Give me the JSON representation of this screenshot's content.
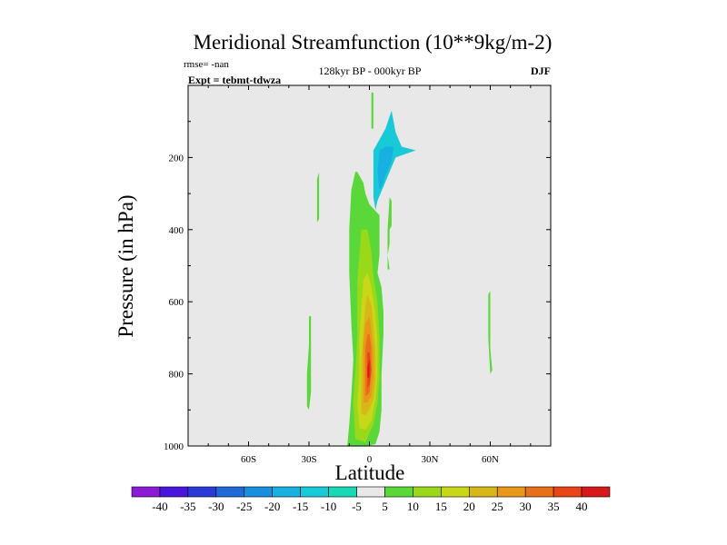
{
  "chart_data": {
    "type": "contour",
    "title": "Meridional Streamfunction (10**9kg/m-2)",
    "rmse_label": "rmse= -nan",
    "expt_label": "Expt = tebmt-tdwza",
    "subtitle": "128kyr BP - 000kyr BP",
    "season": "DJF",
    "xlabel": "Latitude",
    "ylabel": "Pressure (in hPa)",
    "xlim": [
      -90,
      90
    ],
    "ylim": [
      1000,
      0
    ],
    "xticks": [
      {
        "value": -60,
        "label": "60S"
      },
      {
        "value": -30,
        "label": "30S"
      },
      {
        "value": 0,
        "label": "0"
      },
      {
        "value": 30,
        "label": "30N"
      },
      {
        "value": 60,
        "label": "60N"
      }
    ],
    "yticks": [
      {
        "value": 200,
        "label": "200"
      },
      {
        "value": 400,
        "label": "400"
      },
      {
        "value": 600,
        "label": "600"
      },
      {
        "value": 800,
        "label": "800"
      },
      {
        "value": 1000,
        "label": "1000"
      }
    ],
    "background_color": "#e8e8e8",
    "colorbar": {
      "labels": [
        "-40",
        "-35",
        "-30",
        "-25",
        "-20",
        "-15",
        "-10",
        "-5",
        "5",
        "10",
        "15",
        "20",
        "25",
        "30",
        "35",
        "40"
      ],
      "colors": [
        "#8a1ad6",
        "#4a14dc",
        "#2a3ad8",
        "#1e6ad8",
        "#1890e0",
        "#18b0e0",
        "#18cad8",
        "#1ad8b4",
        "#e8e8e8",
        "#5ad83a",
        "#9ad81a",
        "#c8d818",
        "#d8b818",
        "#e89818",
        "#e87018",
        "#e84418",
        "#d81818"
      ]
    },
    "regions": [
      {
        "name": "equatorial-positive-cell",
        "fill": "#5ad83a",
        "points": [
          [
            -11,
            1000
          ],
          [
            -10,
            940
          ],
          [
            -9,
            860
          ],
          [
            -8,
            760
          ],
          [
            -9,
            660
          ],
          [
            -10,
            520
          ],
          [
            -10,
            400
          ],
          [
            -9,
            290
          ],
          [
            -7,
            240
          ],
          [
            -6,
            240
          ],
          [
            -3,
            270
          ],
          [
            -2,
            300
          ],
          [
            0,
            330
          ],
          [
            5,
            360
          ],
          [
            5,
            470
          ],
          [
            4,
            520
          ],
          [
            6,
            560
          ],
          [
            7,
            630
          ],
          [
            7,
            690
          ],
          [
            6,
            800
          ],
          [
            6,
            900
          ],
          [
            5,
            960
          ],
          [
            3,
            995
          ],
          [
            -2,
            1000
          ],
          [
            -6,
            1000
          ]
        ]
      },
      {
        "name": "contour-10",
        "fill": "#9ad81a",
        "points": [
          [
            -7,
            980
          ],
          [
            -8,
            880
          ],
          [
            -7,
            800
          ],
          [
            -6,
            700
          ],
          [
            -6,
            620
          ],
          [
            -6,
            550
          ],
          [
            -5,
            470
          ],
          [
            -4,
            400
          ],
          [
            -1,
            400
          ],
          [
            1,
            460
          ],
          [
            2,
            530
          ],
          [
            4,
            600
          ],
          [
            5,
            700
          ],
          [
            5,
            810
          ],
          [
            4,
            880
          ],
          [
            2,
            940
          ],
          [
            -2,
            990
          ]
        ]
      },
      {
        "name": "contour-15",
        "fill": "#c8d818",
        "points": [
          [
            -5,
            950
          ],
          [
            -6,
            880
          ],
          [
            -5,
            800
          ],
          [
            -5,
            700
          ],
          [
            -4,
            620
          ],
          [
            -3,
            540
          ],
          [
            -1,
            520
          ],
          [
            1,
            560
          ],
          [
            3,
            630
          ],
          [
            4,
            710
          ],
          [
            4,
            800
          ],
          [
            3,
            870
          ],
          [
            1,
            930
          ],
          [
            -2,
            955
          ]
        ]
      },
      {
        "name": "contour-20",
        "fill": "#d8b818",
        "points": [
          [
            -4,
            910
          ],
          [
            -4,
            840
          ],
          [
            -4,
            760
          ],
          [
            -3,
            680
          ],
          [
            -2,
            610
          ],
          [
            -1,
            580
          ],
          [
            1,
            610
          ],
          [
            2,
            670
          ],
          [
            3,
            740
          ],
          [
            3,
            820
          ],
          [
            2,
            870
          ],
          [
            0,
            900
          ],
          [
            -2,
            915
          ]
        ]
      },
      {
        "name": "contour-25",
        "fill": "#e89818",
        "points": [
          [
            -3,
            880
          ],
          [
            -3,
            800
          ],
          [
            -3,
            720
          ],
          [
            -2,
            660
          ],
          [
            0,
            640
          ],
          [
            1,
            680
          ],
          [
            2,
            740
          ],
          [
            2,
            810
          ],
          [
            1,
            860
          ],
          [
            -1,
            880
          ]
        ]
      },
      {
        "name": "contour-30",
        "fill": "#e87018",
        "points": [
          [
            -2,
            860
          ],
          [
            -2,
            790
          ],
          [
            -2,
            730
          ],
          [
            -1,
            690
          ],
          [
            0,
            690
          ],
          [
            1,
            730
          ],
          [
            1,
            800
          ],
          [
            0,
            850
          ],
          [
            -1,
            860
          ]
        ]
      },
      {
        "name": "contour-35",
        "fill": "#e84418",
        "points": [
          [
            -1,
            840
          ],
          [
            -1,
            790
          ],
          [
            -1,
            740
          ],
          [
            0,
            740
          ],
          [
            1,
            790
          ],
          [
            0,
            830
          ]
        ]
      },
      {
        "name": "contour-40",
        "fill": "#d81818",
        "points": [
          [
            -1,
            810
          ],
          [
            -1,
            780
          ],
          [
            0,
            760
          ],
          [
            0,
            790
          ],
          [
            0,
            810
          ]
        ]
      },
      {
        "name": "upper-positive-sliver",
        "fill": "#5ad83a",
        "points": [
          [
            1,
            20
          ],
          [
            2,
            20
          ],
          [
            2,
            120
          ],
          [
            1,
            120
          ]
        ]
      },
      {
        "name": "upper-negative-cell",
        "fill": "#18cad8",
        "points": [
          [
            2,
            310
          ],
          [
            2,
            240
          ],
          [
            2,
            180
          ],
          [
            5,
            150
          ],
          [
            8,
            120
          ],
          [
            11,
            70
          ],
          [
            13,
            130
          ],
          [
            16,
            170
          ],
          [
            23,
            180
          ],
          [
            13,
            200
          ],
          [
            10,
            240
          ],
          [
            4,
            320
          ],
          [
            3,
            345
          ]
        ]
      },
      {
        "name": "upper-negative-core",
        "fill": "#18b0e0",
        "points": [
          [
            5,
            290
          ],
          [
            4,
            240
          ],
          [
            5,
            180
          ],
          [
            8,
            170
          ],
          [
            12,
            170
          ],
          [
            11,
            210
          ],
          [
            8,
            250
          ],
          [
            6,
            280
          ]
        ]
      },
      {
        "name": "nh-subtropical-sliver",
        "fill": "#5ad83a",
        "points": [
          [
            10,
            310
          ],
          [
            11,
            320
          ],
          [
            11,
            390
          ],
          [
            10,
            400
          ],
          [
            10,
            440
          ],
          [
            9,
            470
          ],
          [
            10,
            510
          ],
          [
            9,
            510
          ],
          [
            9,
            450
          ],
          [
            9,
            400
          ]
        ]
      },
      {
        "name": "sh-upper-sliver",
        "fill": "#5ad83a",
        "points": [
          [
            -26,
            380
          ],
          [
            -26,
            330
          ],
          [
            -26,
            260
          ],
          [
            -25,
            240
          ],
          [
            -25,
            300
          ],
          [
            -25,
            370
          ]
        ]
      },
      {
        "name": "sh-lower-sliver",
        "fill": "#5ad83a",
        "points": [
          [
            -31,
            890
          ],
          [
            -31,
            800
          ],
          [
            -30,
            720
          ],
          [
            -30,
            640
          ],
          [
            -29,
            640
          ],
          [
            -29,
            730
          ],
          [
            -29,
            850
          ],
          [
            -30,
            900
          ]
        ]
      },
      {
        "name": "nh-midlat-cell",
        "fill": "#5ad83a",
        "points": [
          [
            59,
            580
          ],
          [
            60,
            570
          ],
          [
            60,
            650
          ],
          [
            60,
            730
          ],
          [
            61,
            790
          ],
          [
            60,
            800
          ],
          [
            59,
            700
          ]
        ]
      }
    ]
  }
}
